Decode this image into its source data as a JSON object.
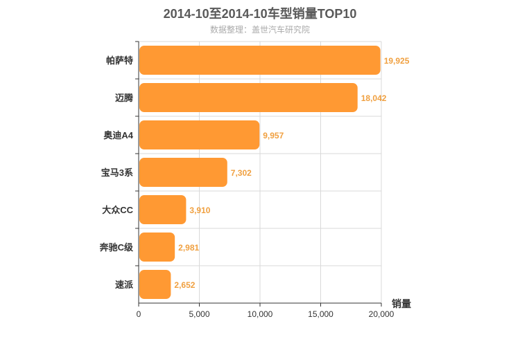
{
  "chart_data": {
    "type": "bar",
    "orientation": "horizontal",
    "title": "2014-10至2014-10车型销量TOP10",
    "subtitle": "数据整理：盖世汽车研究院",
    "xlabel": "销量",
    "ylabel": "",
    "xlim": [
      0,
      20000
    ],
    "xticks": [
      "0",
      "5,000",
      "10,000",
      "15,000",
      "20,000"
    ],
    "categories": [
      "帕萨特",
      "迈腾",
      "奥迪A4",
      "宝马3系",
      "大众CC",
      "奔驰C级",
      "速派"
    ],
    "values": [
      19925,
      18042,
      9957,
      7302,
      3910,
      2981,
      2652
    ],
    "value_labels": [
      "19,925",
      "18,042",
      "9,957",
      "7,302",
      "3,910",
      "2,981",
      "2,652"
    ],
    "bar_color": "#ff9933",
    "grid": true
  }
}
